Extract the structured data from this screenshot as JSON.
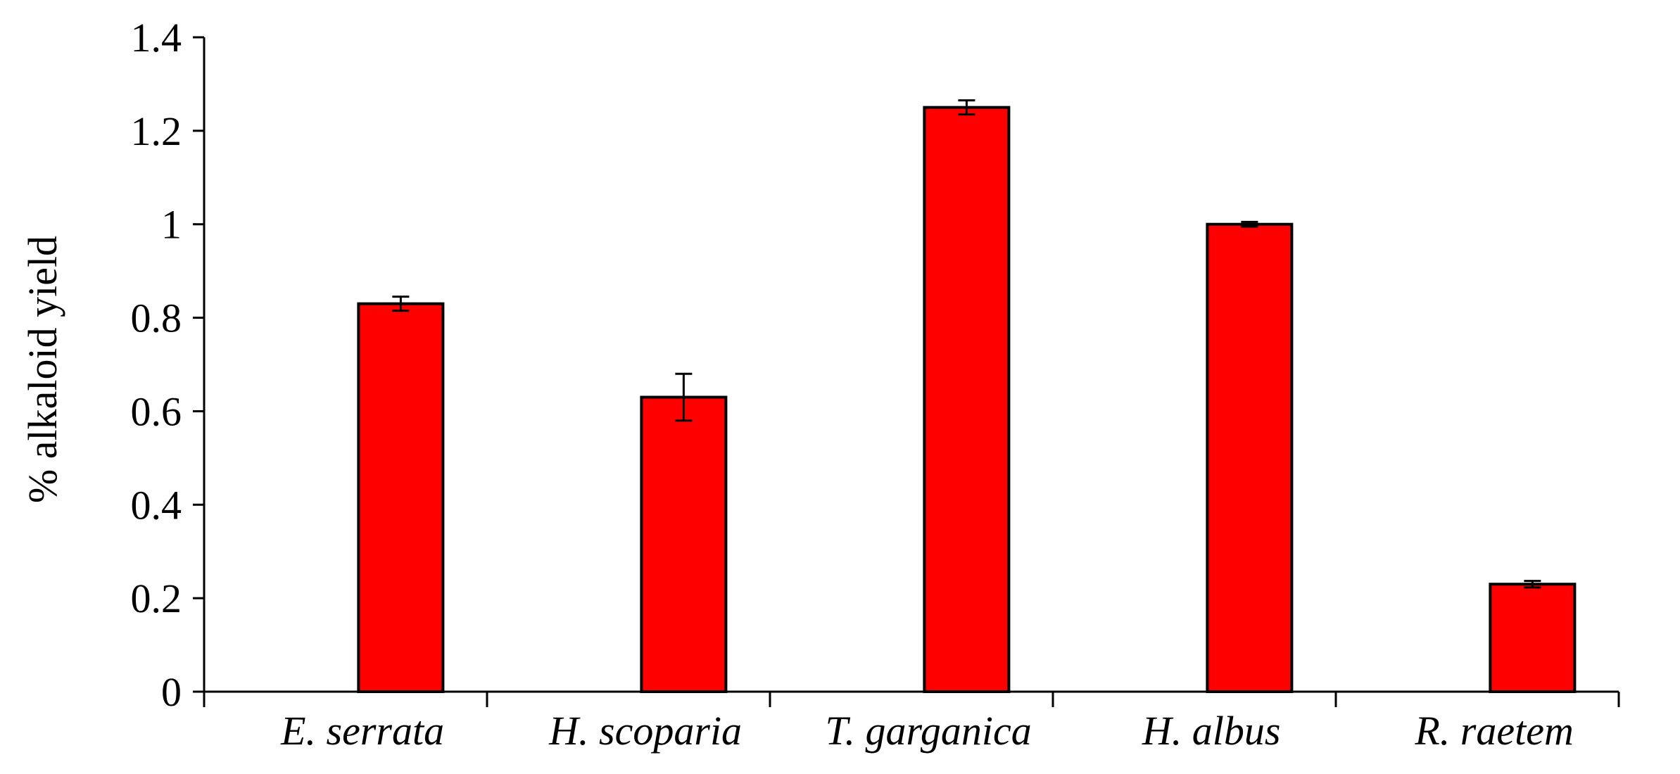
{
  "chart_data": {
    "type": "bar",
    "title": "",
    "xlabel": "",
    "ylabel": "% alkaloid yield",
    "categories": [
      "E. serrata",
      "H. scoparia",
      "T. garganica",
      "H. albus",
      "R. raetem"
    ],
    "series": [
      {
        "values": [
          0.83,
          0.63,
          1.25,
          1.0,
          0.23
        ],
        "errors": [
          0.015,
          0.05,
          0.015,
          0.005,
          0.007
        ]
      }
    ],
    "ylim": [
      0,
      1.4
    ],
    "yticks": [
      0,
      0.2,
      0.4,
      0.6,
      0.8,
      1,
      1.2,
      1.4
    ],
    "ytick_labels": [
      "0",
      "0.2",
      "0.4",
      "0.6",
      "0.8",
      "1",
      "1.2",
      "1.4"
    ],
    "grid": false,
    "legend": "none",
    "colors": {
      "bar_fill": "#ff0000",
      "bar_stroke": "#000000",
      "axis": "#000000"
    }
  }
}
